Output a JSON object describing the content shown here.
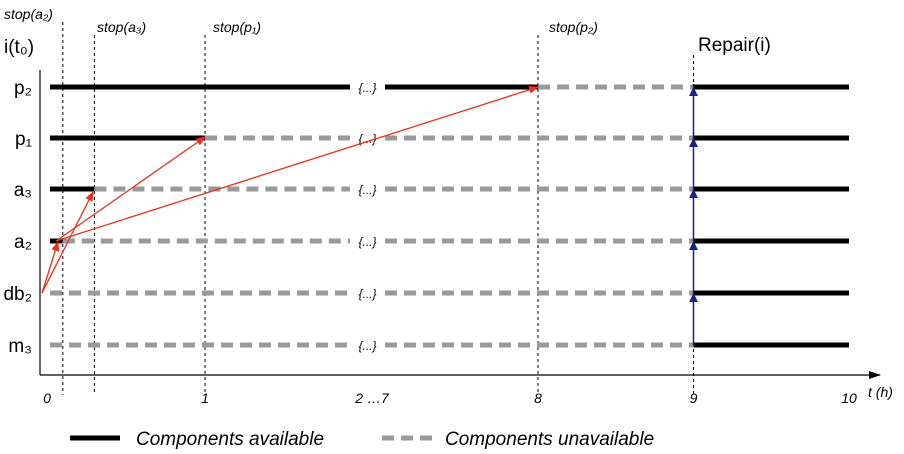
{
  "y_axis_title": "i(t₀)",
  "x_axis_unit": "t (h)",
  "stop_labels": {
    "a2": "stop(a₂)",
    "a3": "stop(a₃)",
    "p1": "stop(p₁)",
    "p2": "stop(p₂)"
  },
  "repair_label": "Repair(i)",
  "gap_marker": "{...}",
  "components": [
    {
      "id": "p2",
      "label": "p₂",
      "available_until": 8
    },
    {
      "id": "p1",
      "label": "p₁",
      "available_until": 1
    },
    {
      "id": "a3",
      "label": "a₃",
      "available_until": 0.3
    },
    {
      "id": "a2",
      "label": "a₂",
      "available_until": 0.1
    },
    {
      "id": "db2",
      "label": "db₂",
      "available_until": 0
    },
    {
      "id": "m3",
      "label": "m₃",
      "available_until": 0
    }
  ],
  "x_ticks": [
    "0",
    "1",
    "2 …7",
    "8",
    "9",
    "10"
  ],
  "stop_times": {
    "a2": 0.1,
    "a3": 0.3,
    "p1": 1,
    "p2": 8
  },
  "repair_time": 9,
  "end_time": 10,
  "legend": {
    "available": "Components available",
    "unavailable": "Components unavailable"
  },
  "colors": {
    "available": "#000000",
    "unavailable": "#999999",
    "propagation_arrow": "#e8301c",
    "repair_arrow": "#1a237e"
  }
}
